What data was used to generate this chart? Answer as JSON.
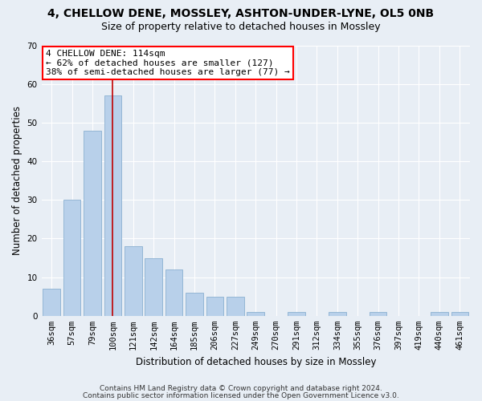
{
  "title1": "4, CHELLOW DENE, MOSSLEY, ASHTON-UNDER-LYNE, OL5 0NB",
  "title2": "Size of property relative to detached houses in Mossley",
  "xlabel": "Distribution of detached houses by size in Mossley",
  "ylabel": "Number of detached properties",
  "categories": [
    "36sqm",
    "57sqm",
    "79sqm",
    "100sqm",
    "121sqm",
    "142sqm",
    "164sqm",
    "185sqm",
    "206sqm",
    "227sqm",
    "249sqm",
    "270sqm",
    "291sqm",
    "312sqm",
    "334sqm",
    "355sqm",
    "376sqm",
    "397sqm",
    "419sqm",
    "440sqm",
    "461sqm"
  ],
  "values": [
    7,
    30,
    48,
    57,
    18,
    15,
    12,
    6,
    5,
    5,
    1,
    0,
    1,
    0,
    1,
    0,
    1,
    0,
    0,
    1,
    1
  ],
  "bar_color": "#b8d0ea",
  "bar_edge_color": "#8ab0d0",
  "annotation_text": "4 CHELLOW DENE: 114sqm\n← 62% of detached houses are smaller (127)\n38% of semi-detached houses are larger (77) →",
  "ann_box_color": "white",
  "ann_edge_color": "red",
  "vline_color": "#c00000",
  "vline_x_index": 3,
  "ylim": [
    0,
    70
  ],
  "yticks": [
    0,
    10,
    20,
    30,
    40,
    50,
    60,
    70
  ],
  "bg_color": "#e8eef5",
  "plot_bg_color": "#e8eef5",
  "footnote1": "Contains HM Land Registry data © Crown copyright and database right 2024.",
  "footnote2": "Contains public sector information licensed under the Open Government Licence v3.0.",
  "title1_fontsize": 10,
  "title2_fontsize": 9,
  "xlabel_fontsize": 8.5,
  "ylabel_fontsize": 8.5,
  "tick_fontsize": 7.5,
  "annot_fontsize": 8,
  "footnote_fontsize": 6.5
}
